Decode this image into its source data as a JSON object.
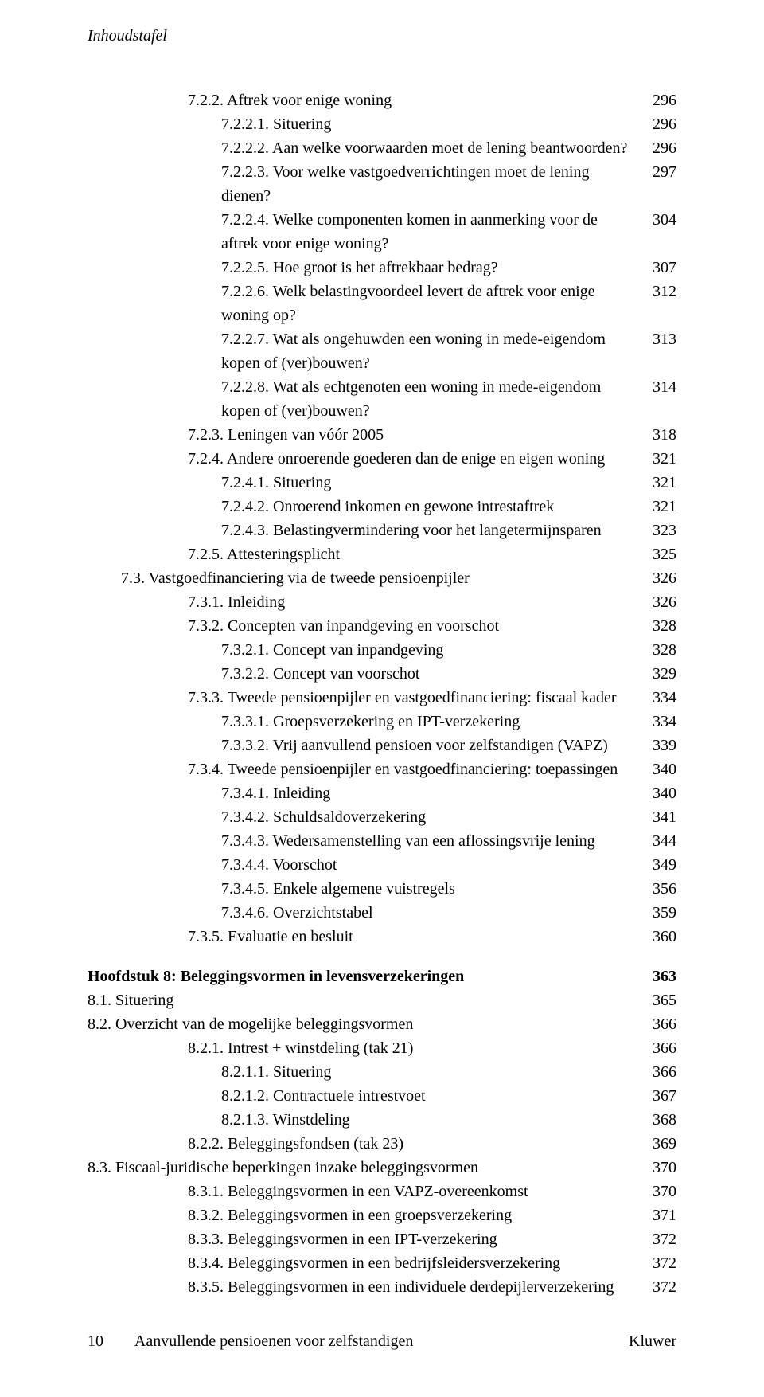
{
  "running_head": "Inhoudstafel",
  "toc": [
    {
      "indent": 3,
      "label": "7.2.2. Aftrek voor enige woning",
      "page": "296"
    },
    {
      "indent": 4,
      "label": "7.2.2.1. Situering",
      "page": "296"
    },
    {
      "indent": 4,
      "label": "7.2.2.2. Aan welke voorwaarden moet de lening beantwoorden?",
      "page": "296"
    },
    {
      "indent": 4,
      "label": "7.2.2.3. Voor welke vastgoedverrichtingen moet de lening dienen?",
      "page": "297"
    },
    {
      "indent": 4,
      "label": "7.2.2.4. Welke componenten komen in aanmerking voor de aftrek voor enige woning?",
      "page": "304"
    },
    {
      "indent": 4,
      "label": "7.2.2.5. Hoe groot is het aftrekbaar bedrag?",
      "page": "307"
    },
    {
      "indent": 4,
      "label": "7.2.2.6. Welk belastingvoordeel levert de aftrek voor enige woning op?",
      "page": "312"
    },
    {
      "indent": 4,
      "label": "7.2.2.7. Wat als ongehuwden een woning in mede-eigendom kopen of (ver)bouwen?",
      "page": "313"
    },
    {
      "indent": 4,
      "label": "7.2.2.8. Wat als echtgenoten een woning in mede-eigendom kopen of (ver)bouwen?",
      "page": "314"
    },
    {
      "indent": 3,
      "label": "7.2.3. Leningen van vóór 2005",
      "page": "318"
    },
    {
      "indent": 3,
      "label": "7.2.4. Andere onroerende goederen dan de enige en eigen woning",
      "page": "321"
    },
    {
      "indent": 4,
      "label": "7.2.4.1. Situering",
      "page": "321"
    },
    {
      "indent": 4,
      "label": "7.2.4.2. Onroerend inkomen en gewone intrestaftrek",
      "page": "321"
    },
    {
      "indent": 4,
      "label": "7.2.4.3. Belastingvermindering voor het langetermijnsparen",
      "page": "323"
    },
    {
      "indent": 3,
      "label": "7.2.5. Attesteringsplicht",
      "page": "325"
    },
    {
      "indent": 1,
      "label": "7.3.  Vastgoedfinanciering via de tweede pensioenpijler",
      "page": "326"
    },
    {
      "indent": 3,
      "label": "7.3.1. Inleiding",
      "page": "326"
    },
    {
      "indent": 3,
      "label": "7.3.2. Concepten van inpandgeving en voorschot",
      "page": "328"
    },
    {
      "indent": 4,
      "label": "7.3.2.1. Concept van inpandgeving",
      "page": "328"
    },
    {
      "indent": 4,
      "label": "7.3.2.2. Concept van voorschot",
      "page": "329"
    },
    {
      "indent": 3,
      "label": "7.3.3. Tweede pensioenpijler en vastgoedfinanciering: fiscaal kader",
      "page": "334"
    },
    {
      "indent": 4,
      "label": "7.3.3.1. Groepsverzekering en IPT-verzekering",
      "page": "334"
    },
    {
      "indent": 4,
      "label": "7.3.3.2. Vrij aanvullend pensioen voor zelfstandigen (VAPZ)",
      "page": "339"
    },
    {
      "indent": 3,
      "label": "7.3.4. Tweede pensioenpijler en vastgoedfinanciering: toepassingen",
      "page": "340"
    },
    {
      "indent": 4,
      "label": "7.3.4.1. Inleiding",
      "page": "340"
    },
    {
      "indent": 4,
      "label": "7.3.4.2. Schuldsaldoverzekering",
      "page": "341"
    },
    {
      "indent": 4,
      "label": "7.3.4.3. Wedersamenstelling van een aflossingsvrije lening",
      "page": "344"
    },
    {
      "indent": 4,
      "label": "7.3.4.4. Voorschot",
      "page": "349"
    },
    {
      "indent": 4,
      "label": "7.3.4.5. Enkele algemene vuistregels",
      "page": "356"
    },
    {
      "indent": 4,
      "label": "7.3.4.6. Overzichtstabel",
      "page": "359"
    },
    {
      "indent": 3,
      "label": "7.3.5. Evaluatie en besluit",
      "page": "360"
    },
    {
      "indent": 0,
      "label": "Hoofdstuk 8: Beleggingsvormen in levensverzekeringen",
      "page": "363",
      "bold": true,
      "gap": true
    },
    {
      "indent": 0,
      "label": "8.1.  Situering",
      "page": "365"
    },
    {
      "indent": 0,
      "label": "8.2.  Overzicht van de mogelijke beleggingsvormen",
      "page": "366"
    },
    {
      "indent": 3,
      "label": "8.2.1. Intrest + winstdeling (tak 21)",
      "page": "366"
    },
    {
      "indent": 4,
      "label": "8.2.1.1. Situering",
      "page": "366"
    },
    {
      "indent": 4,
      "label": "8.2.1.2. Contractuele intrestvoet",
      "page": "367"
    },
    {
      "indent": 4,
      "label": "8.2.1.3. Winstdeling",
      "page": "368"
    },
    {
      "indent": 3,
      "label": "8.2.2. Beleggingsfondsen (tak 23)",
      "page": "369"
    },
    {
      "indent": 0,
      "label": "8.3.  Fiscaal-juridische beperkingen inzake beleggingsvormen",
      "page": "370"
    },
    {
      "indent": 3,
      "label": "8.3.1. Beleggingsvormen in een VAPZ-overeenkomst",
      "page": "370"
    },
    {
      "indent": 3,
      "label": "8.3.2. Beleggingsvormen in een groepsverzekering",
      "page": "371"
    },
    {
      "indent": 3,
      "label": "8.3.3. Beleggingsvormen in een IPT-verzekering",
      "page": "372"
    },
    {
      "indent": 3,
      "label": "8.3.4. Beleggingsvormen in een bedrijfsleidersverzekering",
      "page": "372"
    },
    {
      "indent": 3,
      "label": "8.3.5. Beleggingsvormen in een individuele derdepijlerverzekering",
      "page": "372"
    }
  ],
  "footer": {
    "left_number": "10",
    "center": "Aanvullende pensioenen voor zelfstandigen",
    "right": "Kluwer"
  }
}
